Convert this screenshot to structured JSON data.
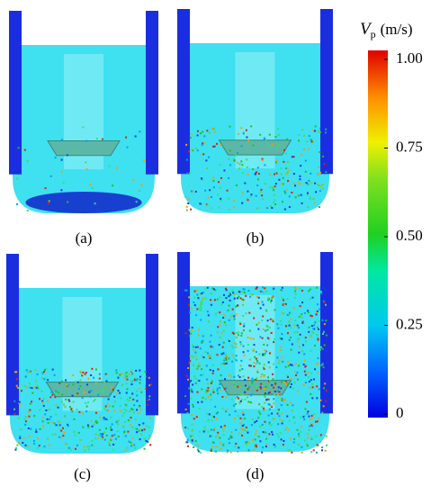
{
  "panels": [
    {
      "label": "(a)"
    },
    {
      "label": "(b)"
    },
    {
      "label": "(c)"
    },
    {
      "label": "(d)"
    }
  ],
  "colorbar": {
    "symbol": "V",
    "subscript": "p",
    "unit": "(m/s)",
    "lim": [
      0,
      1
    ],
    "ticks": [
      0,
      0.25,
      {
        "value": 0.5,
        "label": "0.50"
      },
      0.75,
      {
        "value": 1,
        "label": "1.00"
      }
    ]
  }
}
